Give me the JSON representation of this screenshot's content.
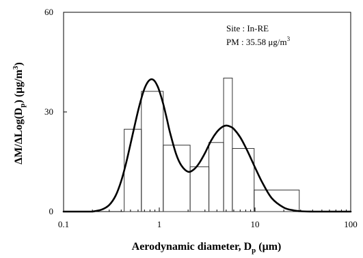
{
  "chart_data": {
    "type": "line",
    "title": "",
    "xlabel": "Aerodynamic diameter, Dp (μm)",
    "xlabel_parts": {
      "main": "Aerodynamic diameter, D",
      "sub": "p",
      "tail": " (μm)"
    },
    "ylabel": "ΔM/ΔLog(Dp) (μg/m3)",
    "ylabel_parts": {
      "main": "ΔM/ΔLog(D",
      "sub": "p",
      "mid": ") (μg/m",
      "sup": "3",
      "tail": ")"
    },
    "x_scale": "log",
    "xlim": [
      0.1,
      100
    ],
    "ylim": [
      0,
      60
    ],
    "x_ticks": [
      0.1,
      1,
      10,
      100
    ],
    "x_tick_labels": [
      "0.1",
      "1",
      "10",
      "100"
    ],
    "y_ticks": [
      0,
      30,
      60
    ],
    "y_tick_labels": [
      "0",
      "30",
      "60"
    ],
    "grid": false,
    "annotation": {
      "site": "Site : In-RE",
      "pm_main": "PM : 35.58 μg/m",
      "pm_sup": "3"
    },
    "histogram_bins": [
      {
        "x0": 0.43,
        "x1": 0.65,
        "y": 24.8
      },
      {
        "x0": 0.65,
        "x1": 1.1,
        "y": 36.2
      },
      {
        "x0": 1.1,
        "x1": 2.1,
        "y": 20.0
      },
      {
        "x0": 2.1,
        "x1": 3.3,
        "y": 13.5
      },
      {
        "x0": 3.3,
        "x1": 4.7,
        "y": 20.8
      },
      {
        "x0": 4.7,
        "x1": 5.8,
        "y": 40.2
      },
      {
        "x0": 5.8,
        "x1": 9.8,
        "y": 19.0
      },
      {
        "x0": 9.8,
        "x1": 29.0,
        "y": 6.5
      }
    ],
    "fit_curve": {
      "x": [
        0.2,
        0.25,
        0.3,
        0.35,
        0.4,
        0.45,
        0.5,
        0.55,
        0.6,
        0.65,
        0.7,
        0.75,
        0.8,
        0.85,
        0.9,
        0.95,
        1.0,
        1.1,
        1.2,
        1.3,
        1.5,
        1.7,
        2.0,
        2.3,
        2.6,
        3.0,
        3.5,
        4.0,
        4.5,
        5.0,
        5.5,
        6.0,
        7.0,
        8.0,
        9.0,
        10.0,
        12.0,
        15.0,
        20.0,
        25.0,
        30.0,
        40.0
      ],
      "y": [
        0.0,
        0.6,
        2.0,
        4.8,
        9.2,
        14.6,
        20.3,
        25.6,
        30.3,
        34.1,
        37.0,
        38.8,
        39.7,
        39.8,
        39.2,
        38.0,
        36.4,
        32.4,
        27.9,
        23.6,
        17.3,
        13.9,
        12.0,
        12.7,
        14.5,
        17.6,
        21.5,
        24.0,
        25.4,
        25.9,
        25.6,
        24.9,
        22.4,
        19.3,
        16.2,
        13.3,
        8.6,
        4.0,
        1.2,
        0.4,
        0.1,
        0.0
      ]
    }
  }
}
